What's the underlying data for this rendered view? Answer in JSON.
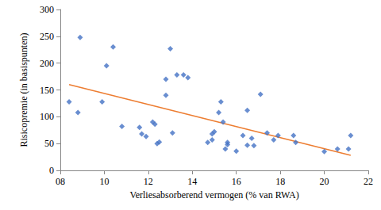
{
  "chart_data": {
    "type": "scatter",
    "x_label": "Verliesabsorberend vermogen (% van RWA)",
    "y_label": "Risicopremie (in basispunten)",
    "x": [
      8.4,
      8.8,
      8.9,
      9.9,
      10.1,
      10.4,
      10.8,
      11.6,
      11.7,
      11.9,
      12.2,
      12.3,
      12.4,
      12.5,
      12.8,
      12.8,
      13.0,
      13.1,
      13.3,
      13.6,
      13.8,
      14.7,
      14.9,
      14.9,
      15.0,
      15.2,
      15.3,
      15.4,
      15.5,
      15.6,
      15.6,
      16.0,
      16.3,
      16.5,
      16.5,
      16.7,
      16.8,
      17.1,
      17.4,
      17.7,
      17.9,
      18.6,
      18.7,
      20.0,
      20.6,
      21.1,
      21.2
    ],
    "values": [
      128,
      108,
      248,
      128,
      195,
      230,
      82,
      80,
      68,
      63,
      90,
      86,
      50,
      53,
      140,
      170,
      227,
      70,
      178,
      178,
      173,
      52,
      57,
      68,
      72,
      108,
      128,
      90,
      40,
      52,
      48,
      36,
      65,
      112,
      47,
      60,
      46,
      142,
      70,
      57,
      65,
      65,
      52,
      35,
      40,
      40,
      65
    ],
    "color": "#4472c4",
    "marker": "diamond",
    "trend": {
      "type": "line",
      "x": [
        8.4,
        21.2
      ],
      "values": [
        160,
        28
      ],
      "color": "#ed7d31",
      "line_style": "solid"
    },
    "xlim": [
      8,
      22
    ],
    "xticks": [
      {
        "value": 8,
        "label": "08"
      },
      10,
      12,
      14,
      16,
      18,
      20,
      22
    ],
    "ylim": [
      0,
      300
    ],
    "yticks": [
      0,
      50,
      100,
      150,
      200,
      250,
      300
    ],
    "grid": false
  }
}
